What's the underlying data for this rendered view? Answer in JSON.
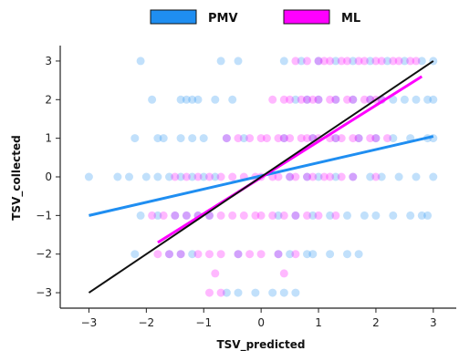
{
  "chart_data": {
    "type": "scatter",
    "xlabel": "TSV_predicted",
    "ylabel": "TSV_collected",
    "xlim": [
      -3.5,
      3.4
    ],
    "ylim": [
      -3.4,
      3.4
    ],
    "x_ticks": [
      -3,
      -2,
      -1,
      0,
      1,
      2,
      3
    ],
    "y_ticks": [
      -3,
      -2,
      -1,
      0,
      1,
      2,
      3
    ],
    "tick_labels_x": [
      "−3",
      "−2",
      "−1",
      "0",
      "1",
      "2",
      "3"
    ],
    "tick_labels_y": [
      "−3",
      "−2",
      "−1",
      "0",
      "1",
      "2",
      "3"
    ],
    "grid": false,
    "legend_position": "top-center",
    "series": [
      {
        "name": "PMV",
        "color": "#1f8ef1",
        "points": {
          "3": [
            -2.1,
            -0.7,
            -0.4,
            0.4,
            0.7,
            1.0,
            1.3,
            1.6,
            1.9,
            2.2,
            2.5,
            2.8,
            3.0
          ],
          "2": [
            -1.9,
            -1.4,
            -1.3,
            -1.2,
            -1.1,
            -0.8,
            -0.5,
            0.6,
            0.8,
            1.0,
            1.3,
            1.6,
            1.9,
            2.1,
            2.3,
            2.5,
            2.7,
            2.9,
            3.0
          ],
          "1": [
            -2.2,
            -1.8,
            -1.7,
            -1.4,
            -1.2,
            -1.0,
            -0.6,
            -0.3,
            0.4,
            0.9,
            1.3,
            1.7,
            2.0,
            2.3,
            2.6,
            2.9,
            3.0
          ],
          "0": [
            -3.0,
            -2.5,
            -2.3,
            -2.0,
            -1.8,
            -1.6,
            -1.4,
            -1.2,
            -1.0,
            -0.8,
            0.5,
            0.8,
            1.0,
            1.3,
            1.6,
            1.9,
            2.1,
            2.4,
            2.7,
            3.0
          ],
          "-1": [
            -2.1,
            -1.8,
            -1.5,
            -1.3,
            -1.1,
            -0.9,
            0.3,
            0.6,
            0.9,
            1.2,
            1.5,
            1.8,
            2.0,
            2.3,
            2.6,
            2.8,
            2.9
          ],
          "-2": [
            -2.2,
            -1.6,
            -1.4,
            -1.2,
            -0.4,
            0.3,
            0.5,
            0.8,
            0.9,
            1.2,
            1.5,
            1.7
          ],
          "-3": [
            -0.6,
            -0.4,
            -0.1,
            0.2,
            0.4,
            0.6
          ]
        },
        "trend": {
          "x": [
            -3.0,
            3.0
          ],
          "y": [
            -1.0,
            1.05
          ]
        }
      },
      {
        "name": "ML",
        "color": "#ff00ff",
        "points": {
          "3": [
            0.6,
            0.8,
            1.0,
            1.1,
            1.2,
            1.4,
            1.5,
            1.7,
            1.8,
            2.0,
            2.1,
            2.3,
            2.4,
            2.6,
            2.7
          ],
          "2": [
            0.2,
            0.4,
            0.5,
            0.7,
            0.8,
            0.9,
            1.0,
            1.2,
            1.3,
            1.5,
            1.6,
            1.8,
            1.9,
            2.0,
            2.1
          ],
          "1": [
            -0.6,
            -0.4,
            -0.2,
            0.0,
            0.1,
            0.3,
            0.4,
            0.5,
            0.7,
            0.8,
            0.9,
            1.0,
            1.2,
            1.3,
            1.4,
            1.6,
            1.7,
            1.9,
            2.0,
            2.2
          ],
          "0": [
            -1.5,
            -1.3,
            -1.1,
            -0.9,
            -0.7,
            -0.5,
            -0.3,
            -0.1,
            0.0,
            0.2,
            0.3,
            0.5,
            0.6,
            0.8,
            0.9,
            1.1,
            1.2,
            1.4,
            1.6,
            2.0
          ],
          "-1": [
            -1.9,
            -1.7,
            -1.5,
            -1.3,
            -1.1,
            -0.9,
            -0.7,
            -0.5,
            -0.3,
            -0.1,
            0.0,
            0.2,
            0.4,
            0.6,
            0.8,
            1.0,
            1.3
          ],
          "-2": [
            -1.8,
            -1.6,
            -1.4,
            -1.1,
            -0.9,
            -0.7,
            -0.4,
            -0.2,
            0.0,
            0.3,
            0.6
          ],
          "-2.5": [
            -0.8,
            0.4
          ],
          "-3": [
            -0.9,
            -0.7
          ]
        },
        "trend": {
          "x": [
            -1.8,
            2.8
          ],
          "y": [
            -1.7,
            2.6
          ]
        }
      }
    ],
    "identity_line": {
      "color": "#111111",
      "x": [
        -3.0,
        3.0
      ],
      "y": [
        -3.0,
        3.0
      ]
    }
  }
}
